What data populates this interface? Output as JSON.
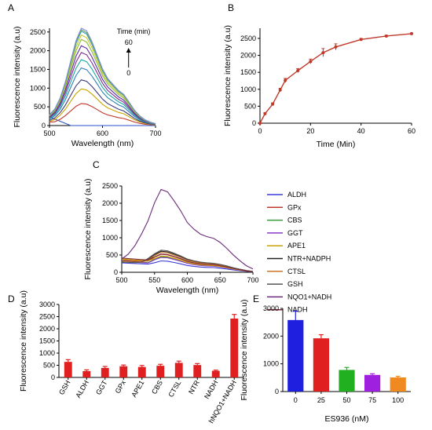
{
  "chart_data": [
    {
      "id": "A",
      "panel": "A",
      "type": "line",
      "xlabel": "Wavelength (nm)",
      "ylabel": "Fluorescence intensity (a.u)",
      "xlim": [
        500,
        700
      ],
      "ylim": [
        0,
        2600
      ],
      "xticks": [
        500,
        600,
        700
      ],
      "yticks": [
        0,
        500,
        1000,
        1500,
        2000,
        2500
      ],
      "annotation": {
        "title": "Time (min)",
        "top": "60",
        "bottom": "0"
      },
      "x": [
        500,
        510,
        520,
        530,
        540,
        550,
        560,
        570,
        580,
        590,
        600,
        610,
        620,
        630,
        640,
        650,
        660,
        670,
        680,
        690,
        700
      ],
      "shape": [
        0.11,
        0.17,
        0.28,
        0.45,
        0.66,
        0.87,
        1.0,
        0.97,
        0.86,
        0.72,
        0.58,
        0.48,
        0.42,
        0.36,
        0.32,
        0.24,
        0.16,
        0.1,
        0.06,
        0.035,
        0.02
      ],
      "series": [
        {
          "peak": 0,
          "color": "#2a55c8"
        },
        {
          "peak": 590,
          "color": "#c0392b"
        },
        {
          "peak": 980,
          "color": "#c9a400"
        },
        {
          "peak": 1220,
          "color": "#3a3a7a"
        },
        {
          "peak": 1540,
          "color": "#2c7fb8"
        },
        {
          "peak": 1760,
          "color": "#1aa89e"
        },
        {
          "peak": 1950,
          "color": "#7b2d8e"
        },
        {
          "peak": 2130,
          "color": "#5b2aa6"
        },
        {
          "peak": 2300,
          "color": "#8fbc3b"
        },
        {
          "peak": 2420,
          "color": "#c8c82a"
        },
        {
          "peak": 2520,
          "color": "#35a0c8"
        },
        {
          "peak": 2560,
          "color": "#6aa84f"
        },
        {
          "peak": 2610,
          "color": "#7d8bd8"
        }
      ]
    },
    {
      "id": "B",
      "panel": "B",
      "type": "line",
      "xlabel": "Time (Min)",
      "ylabel": "Fluorescence intensity (a.u)",
      "xlim": [
        0,
        60
      ],
      "ylim": [
        0,
        2800
      ],
      "xticks": [
        0,
        20,
        40,
        60
      ],
      "yticks": [
        0,
        500,
        1000,
        1500,
        2000,
        2500
      ],
      "color": "#c0392b",
      "x": [
        0,
        2,
        5,
        8,
        10,
        15,
        20,
        25,
        30,
        40,
        50,
        60
      ],
      "y": [
        0,
        280,
        560,
        980,
        1260,
        1550,
        1820,
        2080,
        2250,
        2470,
        2570,
        2640
      ],
      "err": [
        0,
        30,
        40,
        50,
        60,
        60,
        70,
        120,
        90,
        30,
        25,
        20
      ]
    },
    {
      "id": "C",
      "panel": "C",
      "type": "line",
      "xlabel": "Wavelength (nm)",
      "ylabel": "Fluorescence intensity (a.u)",
      "xlim": [
        500,
        700
      ],
      "ylim": [
        0,
        2500
      ],
      "xticks": [
        500,
        550,
        600,
        650,
        700
      ],
      "yticks": [
        0,
        500,
        1000,
        1500,
        2000,
        2500
      ],
      "x": [
        500,
        510,
        520,
        530,
        540,
        550,
        560,
        570,
        580,
        590,
        600,
        610,
        620,
        630,
        640,
        650,
        660,
        670,
        680,
        690,
        700
      ],
      "shape": [
        0.16,
        0.22,
        0.32,
        0.46,
        0.62,
        0.84,
        1.0,
        0.97,
        0.86,
        0.74,
        0.6,
        0.52,
        0.46,
        0.43,
        0.41,
        0.36,
        0.29,
        0.21,
        0.14,
        0.08,
        0.04
      ],
      "series": [
        {
          "name": "ALDH",
          "peak": 330,
          "start": 300,
          "color": "#3a3ad6"
        },
        {
          "name": "GPx",
          "peak": 520,
          "start": 390,
          "color": "#c0392b"
        },
        {
          "name": "CBS",
          "peak": 450,
          "start": 350,
          "color": "#3a9a3a"
        },
        {
          "name": "GGT",
          "peak": 430,
          "start": 340,
          "color": "#8a3ac8"
        },
        {
          "name": "APE1",
          "peak": 470,
          "start": 420,
          "color": "#c9a400"
        },
        {
          "name": "NTR+NADPH",
          "peak": 610,
          "start": 350,
          "color": "#222222"
        },
        {
          "name": "CTSL",
          "peak": 580,
          "start": 340,
          "color": "#c8782a"
        },
        {
          "name": "GSH",
          "peak": 640,
          "start": 320,
          "color": "#555555"
        },
        {
          "name": "NQO1+NADH",
          "peak": 2400,
          "start": 260,
          "color": "#6a2a7a"
        },
        {
          "name": "NADH",
          "peak": 530,
          "start": 450,
          "color": "#7a2a3a"
        }
      ]
    },
    {
      "id": "D",
      "panel": "D",
      "type": "bar",
      "ylabel": "Fluorescence intensity (a.u)",
      "ylim": [
        0,
        3000
      ],
      "yticks": [
        0,
        500,
        1000,
        1500,
        2000,
        2500,
        3000
      ],
      "color": "#e02020",
      "categories": [
        "GSH",
        "ALDH",
        "GGT",
        "GPx",
        "APE1",
        "CBS",
        "CTSL",
        "NTR",
        "NADH",
        "hNQO1+NADH"
      ],
      "values": [
        640,
        260,
        390,
        460,
        430,
        480,
        600,
        510,
        270,
        2420
      ],
      "err": [
        90,
        50,
        60,
        50,
        60,
        60,
        70,
        60,
        30,
        170
      ]
    },
    {
      "id": "E",
      "panel": "E",
      "type": "bar",
      "xlabel": "ES936 (nM)",
      "ylabel": "Fluorescence intensity (a.u)",
      "ylim": [
        0,
        3000
      ],
      "yticks": [
        0,
        1000,
        2000,
        3000
      ],
      "categories": [
        "0",
        "25",
        "50",
        "75",
        "100"
      ],
      "values": [
        2580,
        1920,
        780,
        600,
        510
      ],
      "err": [
        320,
        130,
        90,
        40,
        40
      ],
      "colors": [
        "#1f1fe0",
        "#e02020",
        "#20b020",
        "#a020e0",
        "#f08a20"
      ]
    }
  ]
}
